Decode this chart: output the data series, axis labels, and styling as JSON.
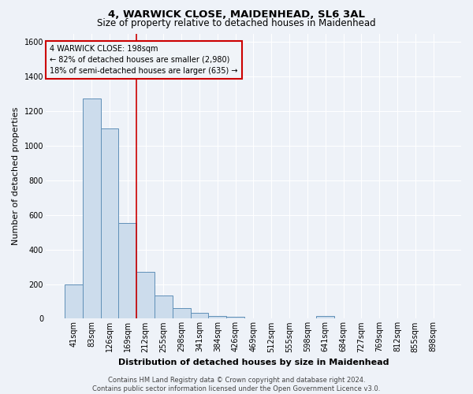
{
  "title": "4, WARWICK CLOSE, MAIDENHEAD, SL6 3AL",
  "subtitle": "Size of property relative to detached houses in Maidenhead",
  "xlabel": "Distribution of detached houses by size in Maidenhead",
  "ylabel": "Number of detached properties",
  "footer_line1": "Contains HM Land Registry data © Crown copyright and database right 2024.",
  "footer_line2": "Contains public sector information licensed under the Open Government Licence v3.0.",
  "bin_labels": [
    "41sqm",
    "83sqm",
    "126sqm",
    "169sqm",
    "212sqm",
    "255sqm",
    "298sqm",
    "341sqm",
    "384sqm",
    "426sqm",
    "469sqm",
    "512sqm",
    "555sqm",
    "598sqm",
    "641sqm",
    "684sqm",
    "727sqm",
    "769sqm",
    "812sqm",
    "855sqm",
    "898sqm"
  ],
  "bar_heights": [
    196,
    1275,
    1100,
    555,
    270,
    135,
    62,
    33,
    17,
    10,
    0,
    0,
    0,
    0,
    15,
    0,
    0,
    0,
    0,
    0,
    0
  ],
  "bar_color": "#ccdcec",
  "bar_edge_color": "#6090b8",
  "red_line_bin_index": 4,
  "red_line_color": "#cc0000",
  "annotation_text": "4 WARWICK CLOSE: 198sqm\n← 82% of detached houses are smaller (2,980)\n18% of semi-detached houses are larger (635) →",
  "annotation_box_edge_color": "#cc0000",
  "annotation_box_face_color": "#f0f4f8",
  "ylim": [
    0,
    1650
  ],
  "yticks": [
    0,
    200,
    400,
    600,
    800,
    1000,
    1200,
    1400,
    1600
  ],
  "bg_color": "#eef2f8",
  "grid_color": "#ffffff",
  "title_fontsize": 9.5,
  "subtitle_fontsize": 8.5,
  "xlabel_fontsize": 8,
  "ylabel_fontsize": 8,
  "tick_fontsize": 7,
  "annotation_fontsize": 7,
  "footer_fontsize": 6,
  "footer_color": "#444444"
}
